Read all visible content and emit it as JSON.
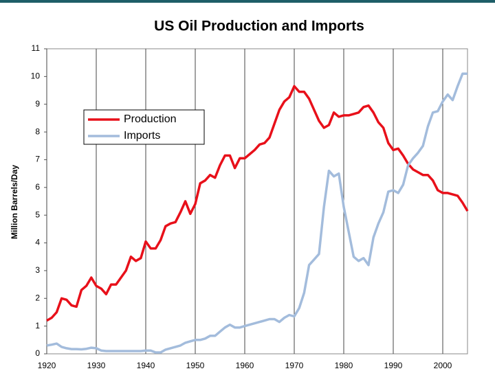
{
  "chart_data": {
    "type": "line",
    "title": "US Oil Production and Imports",
    "y_label": "Million Barrels/Day",
    "x": [
      1920,
      1921,
      1922,
      1923,
      1924,
      1925,
      1926,
      1927,
      1928,
      1929,
      1930,
      1931,
      1932,
      1933,
      1934,
      1935,
      1936,
      1937,
      1938,
      1939,
      1940,
      1941,
      1942,
      1943,
      1944,
      1945,
      1946,
      1947,
      1948,
      1949,
      1950,
      1951,
      1952,
      1953,
      1954,
      1955,
      1956,
      1957,
      1958,
      1959,
      1960,
      1961,
      1962,
      1963,
      1964,
      1965,
      1966,
      1967,
      1968,
      1969,
      1970,
      1971,
      1972,
      1973,
      1974,
      1975,
      1976,
      1977,
      1978,
      1979,
      1980,
      1981,
      1982,
      1983,
      1984,
      1985,
      1986,
      1987,
      1988,
      1989,
      1990,
      1991,
      1992,
      1993,
      1994,
      1995,
      1996,
      1997,
      1998,
      1999,
      2000,
      2001,
      2002,
      2003,
      2004,
      2005
    ],
    "series": [
      {
        "name": "Production",
        "color": "#e8101a",
        "values": [
          1.2,
          1.3,
          1.5,
          2.0,
          1.95,
          1.75,
          1.7,
          2.3,
          2.45,
          2.75,
          2.45,
          2.35,
          2.15,
          2.5,
          2.5,
          2.75,
          3.0,
          3.5,
          3.35,
          3.45,
          4.05,
          3.8,
          3.8,
          4.1,
          4.6,
          4.7,
          4.75,
          5.1,
          5.5,
          5.05,
          5.4,
          6.15,
          6.25,
          6.45,
          6.35,
          6.8,
          7.15,
          7.15,
          6.7,
          7.05,
          7.05,
          7.2,
          7.35,
          7.55,
          7.6,
          7.8,
          8.3,
          8.8,
          9.1,
          9.25,
          9.65,
          9.45,
          9.45,
          9.2,
          8.8,
          8.4,
          8.15,
          8.25,
          8.7,
          8.55,
          8.6,
          8.6,
          8.65,
          8.7,
          8.9,
          8.95,
          8.7,
          8.35,
          8.15,
          7.6,
          7.35,
          7.4,
          7.15,
          6.85,
          6.65,
          6.55,
          6.45,
          6.45,
          6.25,
          5.9,
          5.8,
          5.8,
          5.75,
          5.7,
          5.45,
          5.15
        ]
      },
      {
        "name": "Imports",
        "color": "#a3bcdc",
        "values": [
          0.3,
          0.33,
          0.37,
          0.25,
          0.2,
          0.17,
          0.17,
          0.16,
          0.18,
          0.22,
          0.2,
          0.12,
          0.1,
          0.1,
          0.1,
          0.1,
          0.1,
          0.1,
          0.1,
          0.1,
          0.12,
          0.12,
          0.05,
          0.05,
          0.15,
          0.2,
          0.25,
          0.3,
          0.4,
          0.45,
          0.5,
          0.5,
          0.55,
          0.65,
          0.65,
          0.8,
          0.95,
          1.05,
          0.95,
          0.95,
          1.0,
          1.05,
          1.1,
          1.15,
          1.2,
          1.25,
          1.25,
          1.15,
          1.3,
          1.4,
          1.35,
          1.65,
          2.2,
          3.2,
          3.4,
          3.6,
          5.3,
          6.6,
          6.4,
          6.5,
          5.3,
          4.4,
          3.5,
          3.35,
          3.45,
          3.2,
          4.2,
          4.7,
          5.1,
          5.85,
          5.9,
          5.8,
          6.1,
          6.8,
          7.05,
          7.25,
          7.5,
          8.2,
          8.7,
          8.75,
          9.1,
          9.35,
          9.15,
          9.65,
          10.1,
          10.1
        ]
      }
    ],
    "xlim": [
      1920,
      2005
    ],
    "xticks": [
      1920,
      1930,
      1940,
      1950,
      1960,
      1970,
      1980,
      1990,
      2000
    ],
    "ylim": [
      0,
      11
    ],
    "yticks": [
      0,
      1,
      2,
      3,
      4,
      5,
      6,
      7,
      8,
      9,
      10,
      11
    ],
    "grid": true,
    "legend": "upper left"
  }
}
